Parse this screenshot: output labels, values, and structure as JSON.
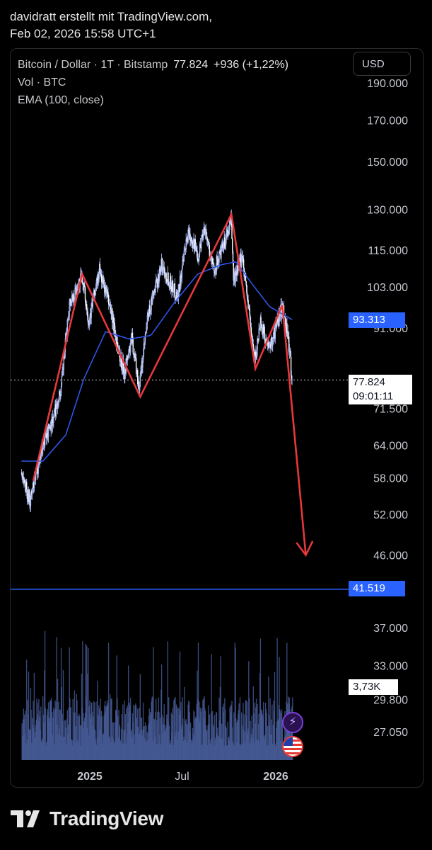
{
  "header": {
    "line1": "davidratt erstellt mit TradingView.com,",
    "line2": "Feb 02, 2026 15:58 UTC+1"
  },
  "legend": {
    "symbol": "Bitcoin / Dollar · 1T · Bitstamp",
    "price": "77.824",
    "change": "+936 (+1,22%)",
    "volume": "Vol · BTC",
    "ema": "EMA (100, close)"
  },
  "currency_button": "USD",
  "tags": {
    "ema_value": "93.313",
    "last_price": "77.824",
    "countdown": "09:01:11",
    "horizontal_line": "41.519",
    "volume_value": "3,73K"
  },
  "chart_data": {
    "type": "candlestick",
    "symbol": "Bitcoin / Dollar",
    "interval": "1T",
    "exchange": "Bitstamp",
    "scale": "log",
    "y_ticks": [
      190000,
      170000,
      150000,
      130000,
      115000,
      103000,
      91000,
      71500,
      64000,
      58000,
      52000,
      46000,
      37000,
      33000,
      29800,
      27050
    ],
    "y_tick_labels": [
      "190.000",
      "170.000",
      "150.000",
      "130.000",
      "115.000",
      "103.000",
      "91.000",
      "71.500",
      "64.000",
      "58.000",
      "52.000",
      "46.000",
      "37.000",
      "33.000",
      "29.800",
      "27.050"
    ],
    "x_ticks": [
      "2025",
      "Jul",
      "2026"
    ],
    "x_tick_dates": [
      "2025-01-01",
      "2025-07-01",
      "2026-01-01"
    ],
    "x_range": [
      "2024-08-20",
      "2026-03-04"
    ],
    "last_price": 77824,
    "ema_100_last": 93313,
    "horizontal_line": 41519,
    "price_path": [
      [
        "2024-08-20",
        59000
      ],
      [
        "2024-09-06",
        54000
      ],
      [
        "2024-09-30",
        64000
      ],
      [
        "2024-10-20",
        69000
      ],
      [
        "2024-11-06",
        76000
      ],
      [
        "2024-11-22",
        98000
      ],
      [
        "2024-12-17",
        106000
      ],
      [
        "2024-12-30",
        93000
      ],
      [
        "2025-01-20",
        108000
      ],
      [
        "2025-02-10",
        97000
      ],
      [
        "2025-02-28",
        84000
      ],
      [
        "2025-03-10",
        80000
      ],
      [
        "2025-03-25",
        88000
      ],
      [
        "2025-04-08",
        76000
      ],
      [
        "2025-04-25",
        94000
      ],
      [
        "2025-05-22",
        110000
      ],
      [
        "2025-06-22",
        100000
      ],
      [
        "2025-07-14",
        122000
      ],
      [
        "2025-08-02",
        113000
      ],
      [
        "2025-08-14",
        124000
      ],
      [
        "2025-09-01",
        108000
      ],
      [
        "2025-09-20",
        116000
      ],
      [
        "2025-10-06",
        125500
      ],
      [
        "2025-10-10",
        105000
      ],
      [
        "2025-10-28",
        113000
      ],
      [
        "2025-11-21",
        82000
      ],
      [
        "2025-12-02",
        93000
      ],
      [
        "2025-12-18",
        85000
      ],
      [
        "2026-01-14",
        97000
      ],
      [
        "2026-01-25",
        89000
      ],
      [
        "2026-02-02",
        77824
      ]
    ],
    "ema_path": [
      [
        "2024-08-20",
        61000
      ],
      [
        "2024-10-01",
        61000
      ],
      [
        "2024-11-15",
        66000
      ],
      [
        "2024-12-20",
        78000
      ],
      [
        "2025-02-01",
        90000
      ],
      [
        "2025-03-20",
        88000
      ],
      [
        "2025-05-01",
        89000
      ],
      [
        "2025-06-15",
        98000
      ],
      [
        "2025-08-01",
        107000
      ],
      [
        "2025-09-15",
        110000
      ],
      [
        "2025-10-15",
        111000
      ],
      [
        "2025-11-15",
        104000
      ],
      [
        "2025-12-20",
        97000
      ],
      [
        "2026-02-02",
        93313
      ]
    ],
    "annotation_path": [
      [
        "2024-09-12",
        57500
      ],
      [
        "2024-12-17",
        107000
      ],
      [
        "2025-04-10",
        74000
      ],
      [
        "2025-10-06",
        128000
      ],
      [
        "2025-11-22",
        80500
      ],
      [
        "2026-01-14",
        97500
      ],
      [
        "2026-03-01",
        46000
      ]
    ],
    "volume_value": "3,73K",
    "colors": {
      "candles": "#a9b7ec",
      "ema": "#2f55e8",
      "annotation": "#e5383b",
      "horizontal_line": "#2962ff",
      "volume": "#4a5f9e",
      "background": "#000000"
    }
  }
}
